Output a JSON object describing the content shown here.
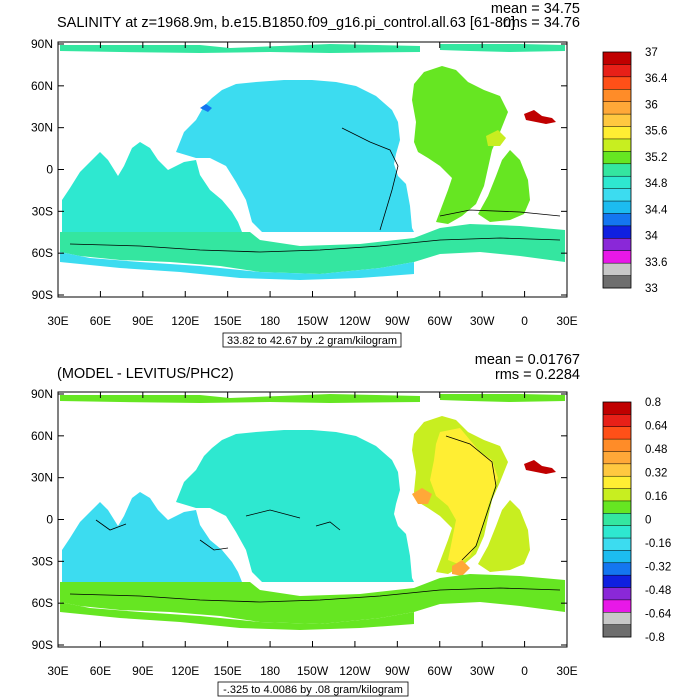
{
  "panels": [
    {
      "title": "SALINITY at z=1968.9m, b.e15.B1850.f09_g16.pi_control.all.63 [61-80]",
      "mean": "mean = 34.75",
      "rms": "rms = 34.76",
      "range_label": "33.82 to 42.67 by .2 gram/kilogram",
      "lon_ticks": [
        "30E",
        "60E",
        "90E",
        "120E",
        "150E",
        "180",
        "150W",
        "120W",
        "90W",
        "60W",
        "30W",
        "0",
        "30E"
      ],
      "lat_ticks": [
        "90N",
        "60N",
        "30N",
        "0",
        "30S",
        "60S",
        "90S"
      ],
      "colorbar": {
        "labels": [
          "37",
          "36.4",
          "36",
          "35.6",
          "35.2",
          "34.8",
          "34.4",
          "34",
          "33.6",
          "33"
        ],
        "colors": [
          "#c00000",
          "#e82018",
          "#ff5018",
          "#ff8c28",
          "#ffa838",
          "#ffc840",
          "#ffee33",
          "#c8ee20",
          "#66e622",
          "#34e6a0",
          "#2ee8d0",
          "#3cdcf0",
          "#1cbcf0",
          "#1476f0",
          "#1020e0",
          "#8a28d8",
          "#e818e8",
          "#c8c8c8",
          "#6e6e6e"
        ]
      },
      "fields": {
        "ocean": "#2ee8d0",
        "pacific": "#3cdcf0",
        "arctic": "#34e6a0",
        "atlantic": "#66e622",
        "subtropics": "#c8ee20",
        "southern": "#34e6a0",
        "med": "#c00000",
        "fresh": "#1476f0"
      }
    },
    {
      "title": "(MODEL - LEVITUS/PHC2)",
      "mean": "mean = 0.01767",
      "rms": "rms = 0.2284",
      "range_label": "-.325 to 4.0086 by .08 gram/kilogram",
      "lon_ticks": [
        "30E",
        "60E",
        "90E",
        "120E",
        "150E",
        "180",
        "150W",
        "120W",
        "90W",
        "60W",
        "30W",
        "0",
        "30E"
      ],
      "lat_ticks": [
        "90N",
        "60N",
        "30N",
        "0",
        "30S",
        "60S",
        "90S"
      ],
      "colorbar": {
        "labels": [
          "0.8",
          "0.64",
          "0.48",
          "0.32",
          "0.16",
          "0",
          "-0.16",
          "-0.32",
          "-0.48",
          "-0.64",
          "-0.8"
        ],
        "colors": [
          "#c00000",
          "#e82018",
          "#ff5018",
          "#ff8c28",
          "#ffa838",
          "#ffc840",
          "#ffee33",
          "#c8ee20",
          "#66e622",
          "#34e6a0",
          "#2ee8d0",
          "#3cdcf0",
          "#1cbcf0",
          "#1476f0",
          "#1020e0",
          "#8a28d8",
          "#e818e8",
          "#c8c8c8",
          "#6e6e6e"
        ]
      },
      "fields": {
        "ocean": "#2ee8d0",
        "southern": "#66e622",
        "arctic": "#66e622",
        "atlantic": "#ffee33",
        "equatorial_atl": "#c8ee20",
        "indian": "#3cdcf0",
        "med": "#c00000",
        "warm": "#ffa838"
      }
    }
  ]
}
